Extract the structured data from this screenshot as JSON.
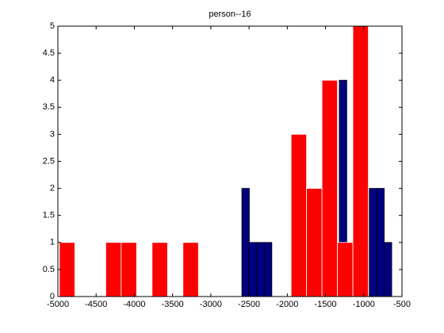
{
  "chart_data": {
    "type": "histogram",
    "title": "person--16",
    "series": [
      {
        "color": "#000080",
        "edge": "#000000",
        "bins": [
          -2594,
          -2496,
          -2398,
          -2300,
          -2202,
          -2104,
          -2006,
          -1908,
          -1810,
          -1712,
          -1614,
          -1516,
          -1418,
          -1320,
          -1222,
          -1124,
          -1026,
          -928,
          -830,
          -732,
          -634
        ],
        "counts": [
          2,
          1,
          1,
          1,
          0,
          0,
          0,
          0,
          0,
          0,
          0,
          0,
          1,
          4,
          0,
          4,
          0,
          2,
          2,
          1
        ]
      },
      {
        "color": "#ff0000",
        "edge": "#ffffff",
        "bins": [
          -4980,
          -4778,
          -4576,
          -4374,
          -4172,
          -3970,
          -3768,
          -3566,
          -3364,
          -3162,
          -2960,
          -2758,
          -2556,
          -2354,
          -2152,
          -1950,
          -1748,
          -1546,
          -1344,
          -1142,
          -940
        ],
        "counts": [
          1,
          0,
          0,
          1,
          1,
          0,
          1,
          0,
          1,
          0,
          0,
          0,
          0,
          0,
          0,
          3,
          2,
          4,
          1,
          5
        ]
      }
    ],
    "xlim": [
      -5000,
      -500
    ],
    "xticks": [
      -5000,
      -4500,
      -4000,
      -3500,
      -3000,
      -2500,
      -2000,
      -1500,
      -1000,
      -500
    ],
    "ylim": [
      0,
      5
    ],
    "yticks": [
      0,
      0.5,
      1,
      1.5,
      2,
      2.5,
      3,
      3.5,
      4,
      4.5,
      5
    ]
  }
}
